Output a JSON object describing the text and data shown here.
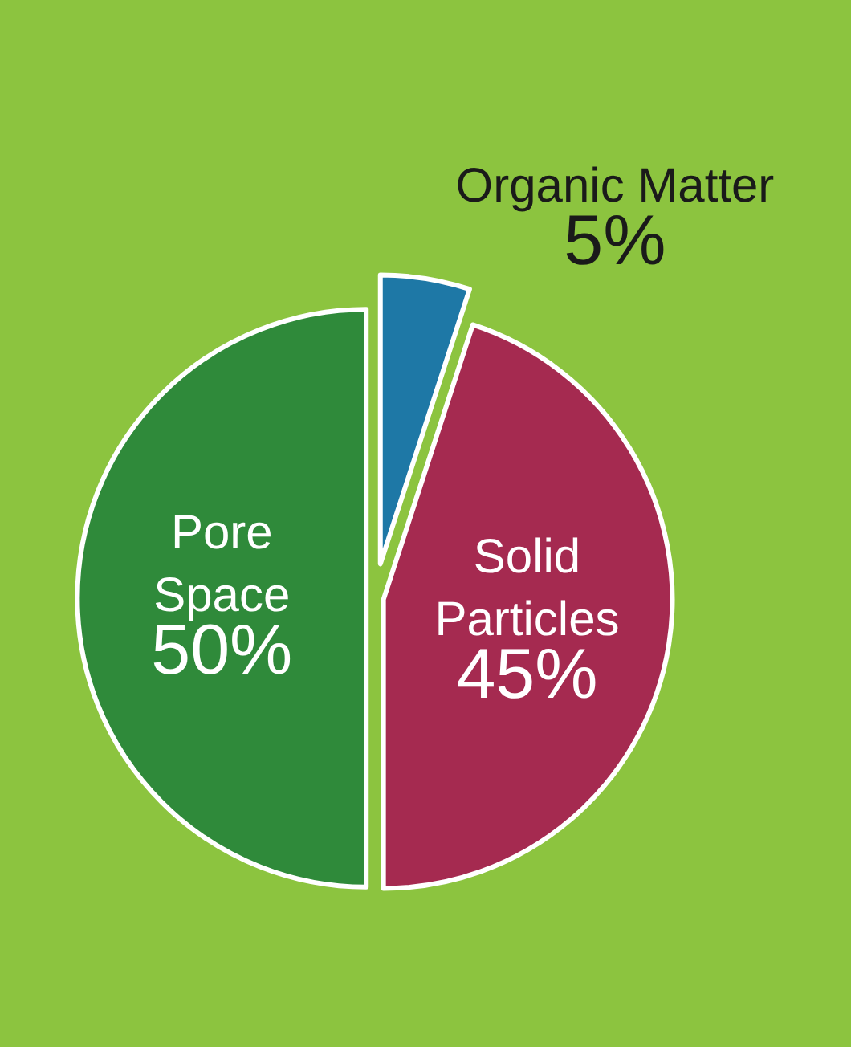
{
  "chart_data": {
    "type": "pie",
    "categories": [
      "Organic Matter",
      "Solid Particles",
      "Pore Space"
    ],
    "values": [
      5,
      45,
      50
    ],
    "colors": [
      "#1e78a6",
      "#a52a50",
      "#2f8a3a"
    ],
    "value_labels": [
      "5%",
      "45%",
      "50%"
    ],
    "legend": false
  }
}
